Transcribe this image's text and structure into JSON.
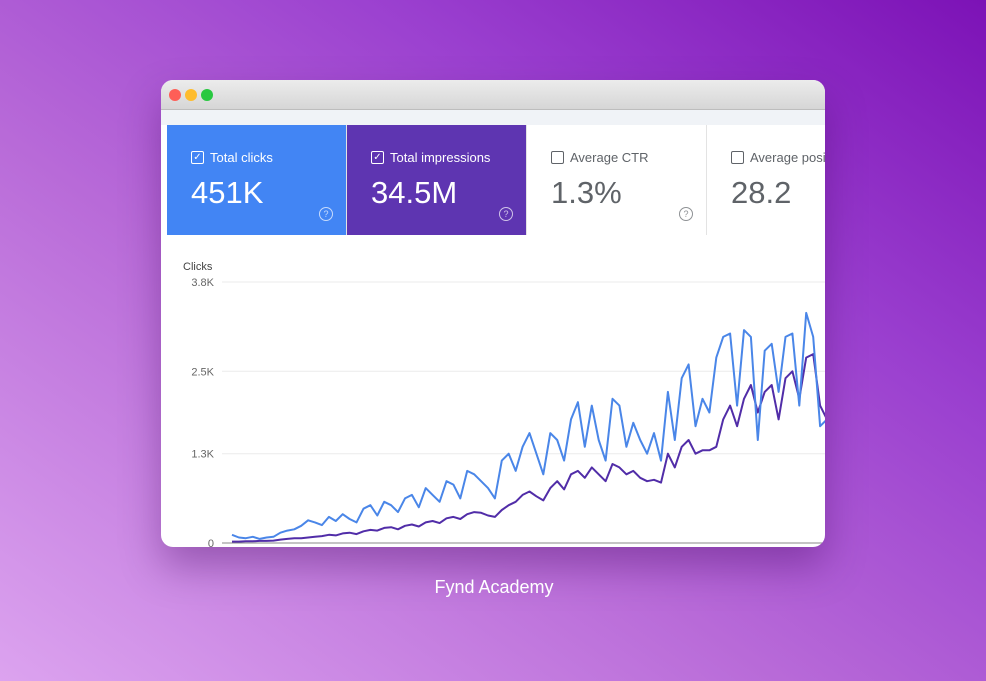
{
  "cards": [
    {
      "label": "Total clicks",
      "value": "451K",
      "checked": true,
      "bg": "#4285f4",
      "fg": "#ffffff"
    },
    {
      "label": "Total impressions",
      "value": "34.5M",
      "checked": true,
      "bg": "#5e35b1",
      "fg": "#ffffff"
    },
    {
      "label": "Average CTR",
      "value": "1.3%",
      "checked": false,
      "bg": "#ffffff",
      "fg": "#5f6368"
    },
    {
      "label": "Average posi",
      "value": "28.2",
      "checked": false,
      "bg": "#ffffff",
      "fg": "#5f6368"
    }
  ],
  "check_glyph": "✓",
  "help_glyph": "?",
  "chart_data": {
    "type": "line",
    "ylabel": "Clicks",
    "ylim": [
      0,
      3800
    ],
    "yticks": [
      {
        "v": 0,
        "label": "0"
      },
      {
        "v": 1300,
        "label": "1.3K"
      },
      {
        "v": 2500,
        "label": "2.5K"
      },
      {
        "v": 3800,
        "label": "3.8K"
      }
    ],
    "series": [
      {
        "name": "Total clicks",
        "color": "#4a86e8",
        "values": [
          120,
          80,
          70,
          90,
          60,
          80,
          90,
          150,
          180,
          200,
          250,
          330,
          300,
          260,
          380,
          320,
          420,
          350,
          300,
          500,
          550,
          400,
          600,
          550,
          450,
          650,
          700,
          520,
          800,
          700,
          600,
          900,
          850,
          650,
          1050,
          1000,
          900,
          800,
          650,
          1200,
          1300,
          1050,
          1400,
          1600,
          1300,
          1000,
          1600,
          1500,
          1200,
          1800,
          2050,
          1400,
          2000,
          1500,
          1200,
          2100,
          2000,
          1400,
          1750,
          1500,
          1300,
          1600,
          1200,
          2200,
          1500,
          2400,
          2600,
          1700,
          2100,
          1900,
          2700,
          3000,
          3050,
          2000,
          3100,
          3000,
          1500,
          2800,
          2900,
          2200,
          3000,
          3050,
          2000,
          3350,
          3000,
          1700,
          1800
        ]
      },
      {
        "name": "Total impressions",
        "color": "#512da8",
        "values": [
          20,
          20,
          25,
          25,
          30,
          30,
          35,
          50,
          60,
          70,
          70,
          80,
          90,
          100,
          120,
          110,
          140,
          150,
          130,
          170,
          190,
          180,
          220,
          230,
          200,
          250,
          270,
          240,
          300,
          320,
          290,
          360,
          380,
          350,
          420,
          450,
          440,
          400,
          380,
          480,
          550,
          600,
          700,
          750,
          680,
          620,
          800,
          900,
          780,
          1000,
          1050,
          950,
          1100,
          1000,
          900,
          1150,
          1100,
          1000,
          1050,
          950,
          900,
          920,
          880,
          1300,
          1100,
          1400,
          1500,
          1300,
          1350,
          1350,
          1400,
          1800,
          2000,
          1700,
          2100,
          2300,
          1900,
          2200,
          2300,
          1800,
          2400,
          2500,
          2100,
          2700,
          2750,
          2000,
          1800
        ]
      }
    ]
  },
  "caption": "Fynd Academy"
}
